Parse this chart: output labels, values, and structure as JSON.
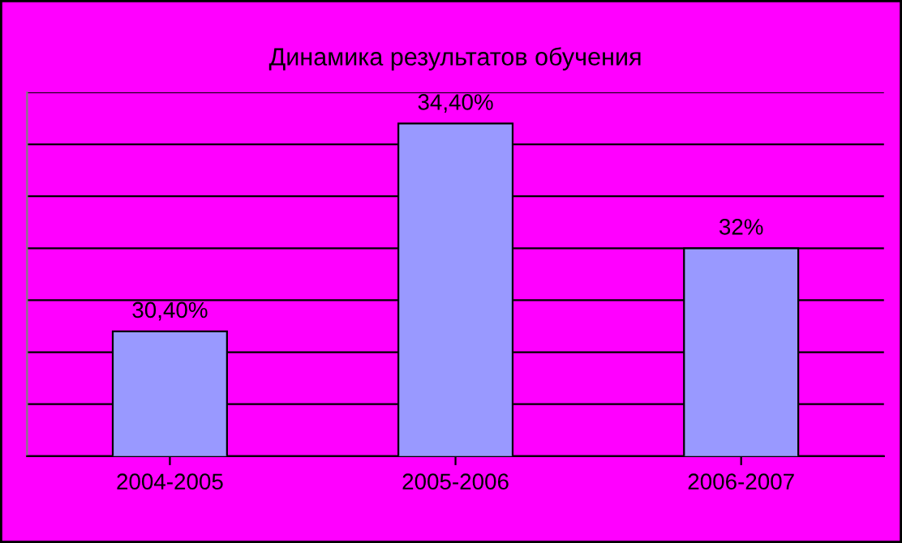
{
  "chart_data": {
    "type": "bar",
    "title": "Динамика результатов обучения",
    "categories": [
      "2004-2005",
      "2005-2006",
      "2006-2007"
    ],
    "values": [
      30.4,
      34.4,
      32
    ],
    "color": "#9999ff",
    "value_labels": [
      "30,40%",
      "34,40%",
      "32%"
    ],
    "ylim": [
      28,
      35
    ],
    "yticks": [
      {
        "value": 28,
        "label": null
      },
      {
        "value": 29,
        "label": null
      },
      {
        "value": 30,
        "label": null
      },
      {
        "value": 31,
        "label": null
      },
      {
        "value": 32,
        "label": null
      },
      {
        "value": 33,
        "label": null
      },
      {
        "value": 34,
        "label": null
      },
      {
        "value": 35,
        "label": null
      }
    ],
    "tick_labels": "x",
    "grid": "y",
    "legend": false
  }
}
